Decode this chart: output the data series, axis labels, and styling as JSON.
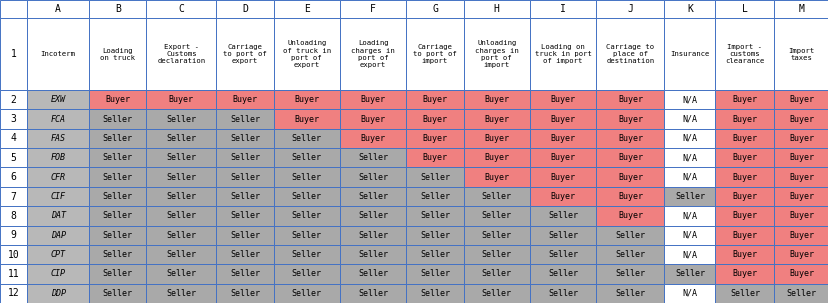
{
  "col_headers": [
    "",
    "Incoterm",
    "Loading\non truck",
    "Export -\nCustoms\ndeclaration",
    "Carriage\nto port of\nexport",
    "Unloading\nof truck in\nport of\nexport",
    "Loading\ncharges in\nport of\nexport",
    "Carriage\nto port of\nimport",
    "Unloading\ncharges in\nport of\nimport",
    "Loading on\ntruck in port\nof import",
    "Carriage to\nplace of\ndestination",
    "Insurance",
    "Import -\ncustoms\nclearance",
    "Import\ntaxes"
  ],
  "incoterms": [
    "EXW",
    "FCA",
    "FAS",
    "FOB",
    "CFR",
    "CIF",
    "DAT",
    "DAP",
    "CPT",
    "CIP",
    "DDP"
  ],
  "table_data": [
    [
      "Buyer",
      "Buyer",
      "Buyer",
      "Buyer",
      "Buyer",
      "Buyer",
      "Buyer",
      "Buyer",
      "Buyer",
      "N/A",
      "Buyer",
      "Buyer"
    ],
    [
      "Seller",
      "Seller",
      "Seller",
      "Buyer",
      "Buyer",
      "Buyer",
      "Buyer",
      "Buyer",
      "Buyer",
      "N/A",
      "Buyer",
      "Buyer"
    ],
    [
      "Seller",
      "Seller",
      "Seller",
      "Seller",
      "Buyer",
      "Buyer",
      "Buyer",
      "Buyer",
      "Buyer",
      "N/A",
      "Buyer",
      "Buyer"
    ],
    [
      "Seller",
      "Seller",
      "Seller",
      "Seller",
      "Seller",
      "Buyer",
      "Buyer",
      "Buyer",
      "Buyer",
      "N/A",
      "Buyer",
      "Buyer"
    ],
    [
      "Seller",
      "Seller",
      "Seller",
      "Seller",
      "Seller",
      "Seller",
      "Buyer",
      "Buyer",
      "Buyer",
      "N/A",
      "Buyer",
      "Buyer"
    ],
    [
      "Seller",
      "Seller",
      "Seller",
      "Seller",
      "Seller",
      "Seller",
      "Seller",
      "Buyer",
      "Buyer",
      "Seller",
      "Buyer",
      "Buyer"
    ],
    [
      "Seller",
      "Seller",
      "Seller",
      "Seller",
      "Seller",
      "Seller",
      "Seller",
      "Seller",
      "Buyer",
      "N/A",
      "Buyer",
      "Buyer"
    ],
    [
      "Seller",
      "Seller",
      "Seller",
      "Seller",
      "Seller",
      "Seller",
      "Seller",
      "Seller",
      "Seller",
      "N/A",
      "Buyer",
      "Buyer"
    ],
    [
      "Seller",
      "Seller",
      "Seller",
      "Seller",
      "Seller",
      "Seller",
      "Seller",
      "Seller",
      "Seller",
      "N/A",
      "Buyer",
      "Buyer"
    ],
    [
      "Seller",
      "Seller",
      "Seller",
      "Seller",
      "Seller",
      "Seller",
      "Seller",
      "Seller",
      "Seller",
      "Seller",
      "Buyer",
      "Buyer"
    ],
    [
      "Seller",
      "Seller",
      "Seller",
      "Seller",
      "Seller",
      "Seller",
      "Seller",
      "Seller",
      "Seller",
      "N/A",
      "Seller",
      "Seller"
    ]
  ],
  "color_buyer": "#f08080",
  "color_seller": "#a9a9a9",
  "color_na": "#ffffff",
  "color_header_bg": "#ffffff",
  "color_incoterm_bg": "#b8b8b8",
  "color_border": "#4472c4",
  "font_size_header": 5.2,
  "font_size_cell": 6.0,
  "font_size_letter": 7.0,
  "font_size_rownum": 7.0,
  "font_size_incoterm": 6.0
}
